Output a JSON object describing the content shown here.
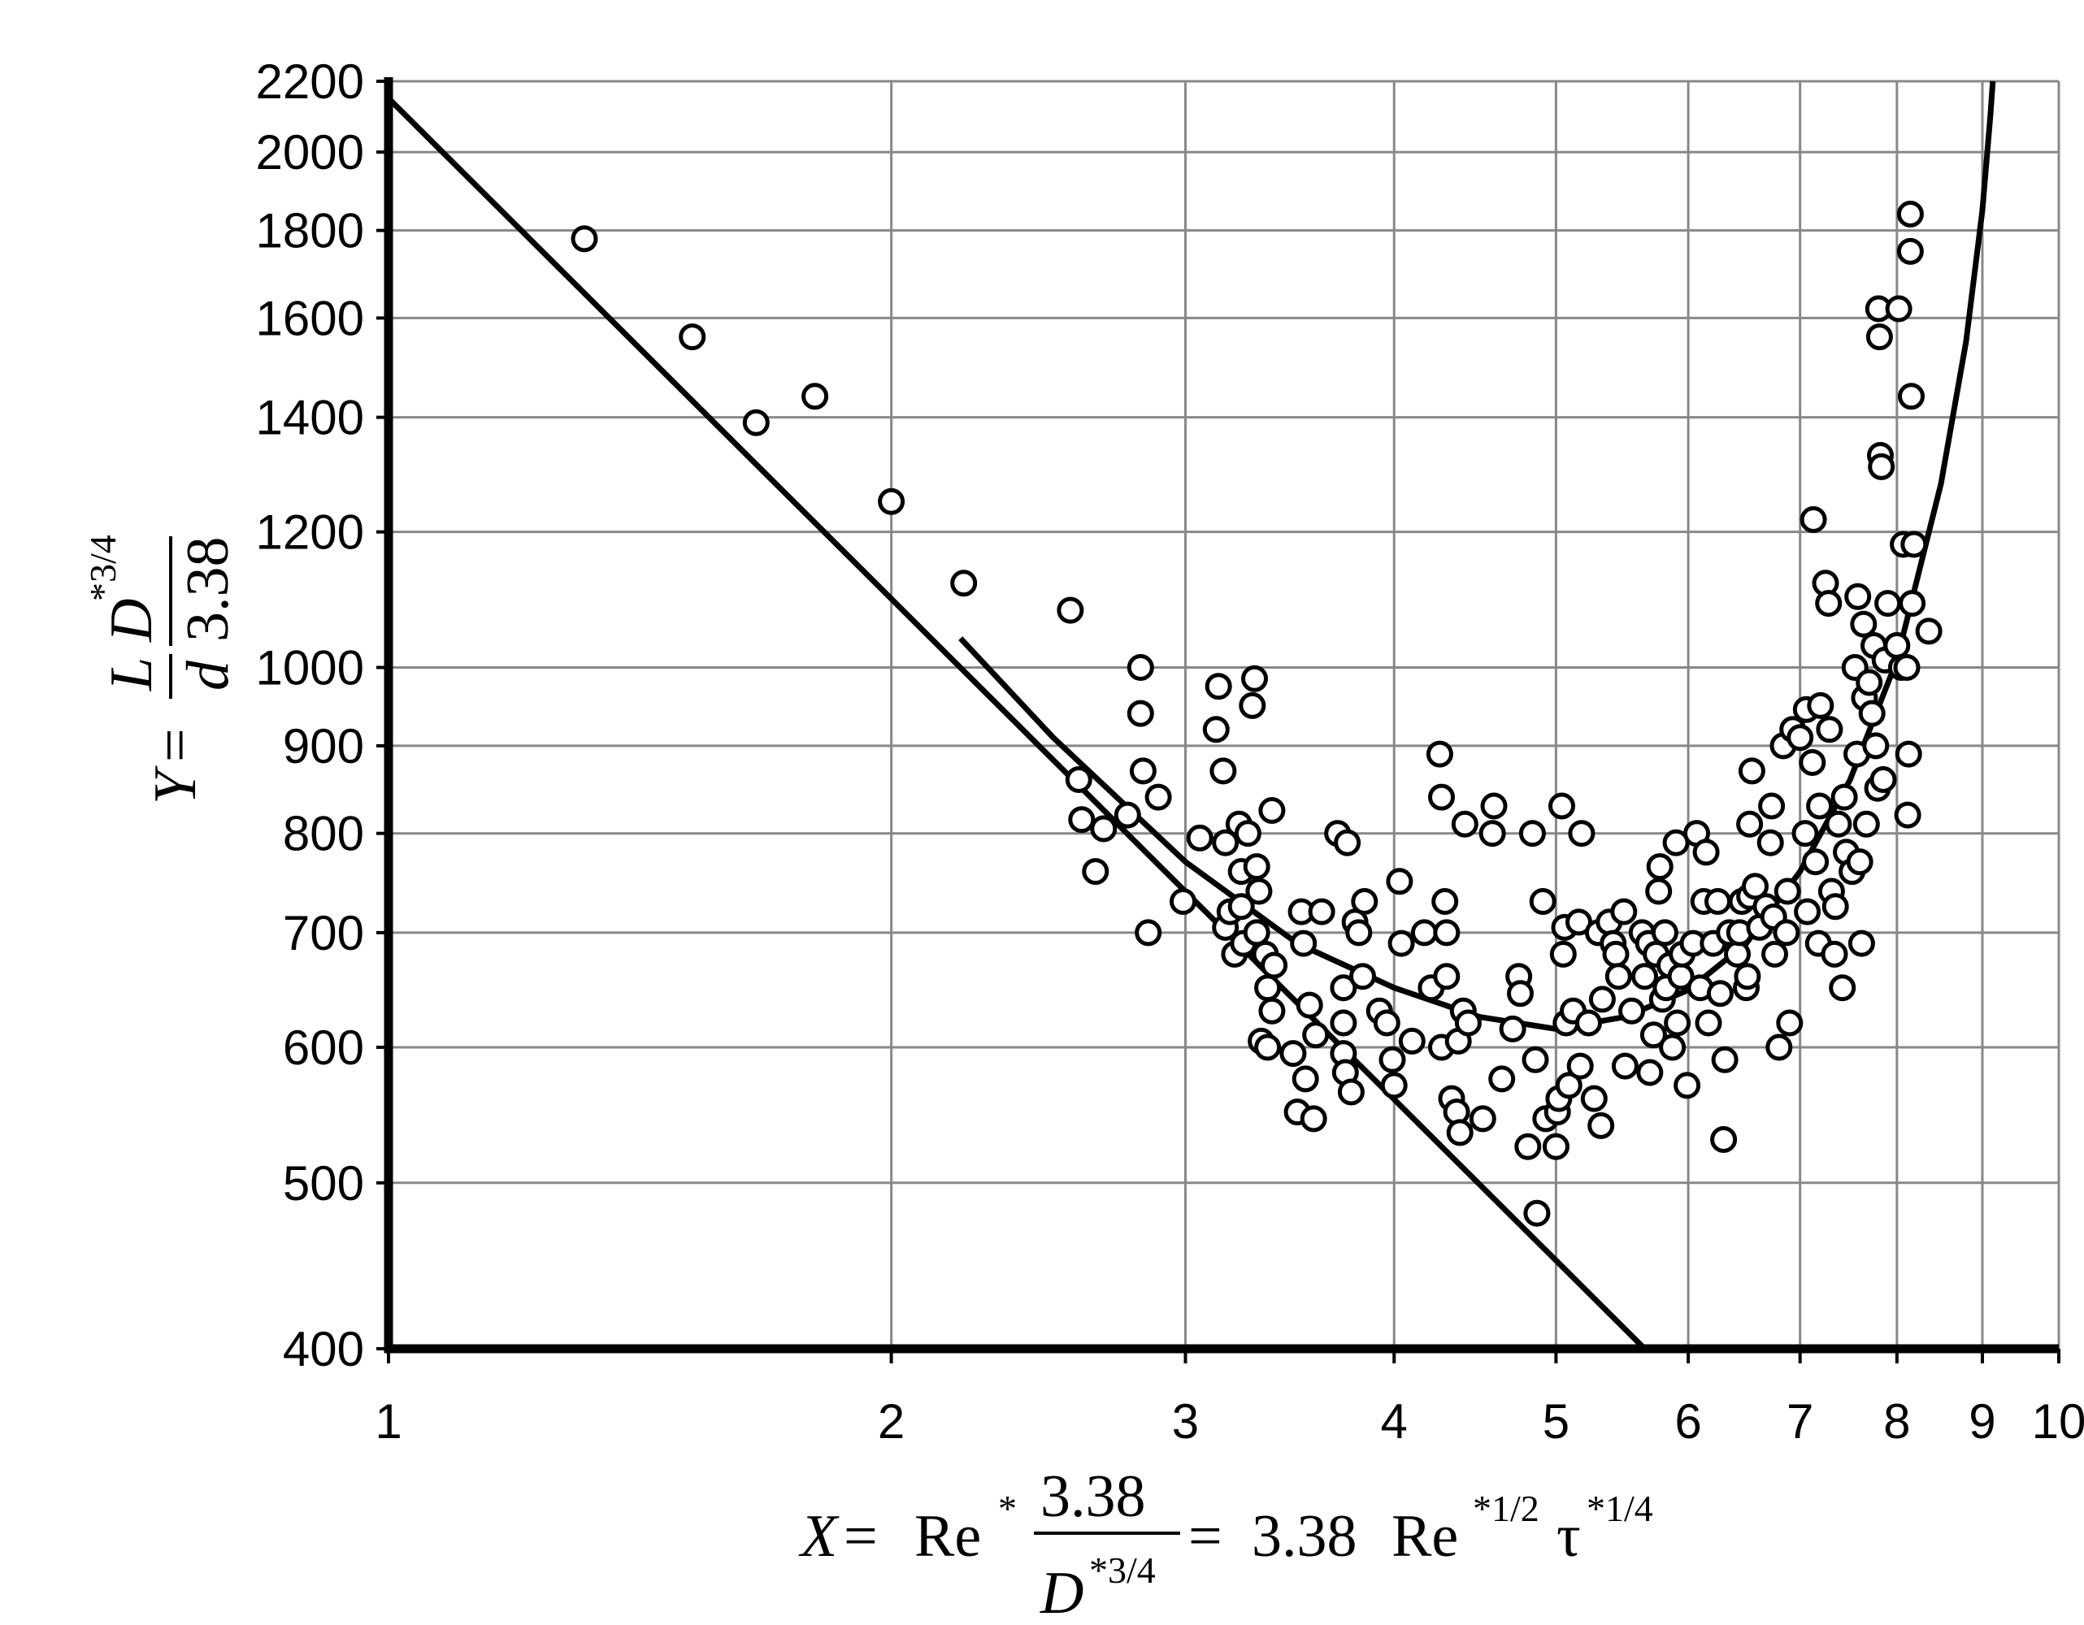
{
  "chart_data": {
    "type": "scatter",
    "title": "",
    "xscale": "log",
    "yscale": "log",
    "xlim": [
      1,
      10
    ],
    "ylim": [
      400,
      2200
    ],
    "grid": true,
    "legend": "none",
    "x_ticks": [
      "1",
      "2",
      "3",
      "4",
      "5",
      "6",
      "7",
      "8",
      "9",
      "10"
    ],
    "y_ticks": [
      "400",
      "500",
      "600",
      "700",
      "800",
      "900",
      "1000",
      "1200",
      "1400",
      "1600",
      "1800",
      "2000",
      "2200"
    ],
    "xlabel": {
      "x": "X",
      "eq": "=",
      "re": "Re",
      "star": "*",
      "num": "3.38",
      "den_d": "D",
      "den_exp": "*3/4",
      "eq2": "=",
      "coef": "3.38",
      "re2": "Re",
      "re2_exp": "*1/2",
      "tau": "τ",
      "tau_exp": "*1/4"
    },
    "ylabel": {
      "y": "Y",
      "eq": "=",
      "num_l": "L",
      "den_d": "d",
      "d_big": "D",
      "d_exp": "*3/4",
      "den_338": "3.38"
    },
    "series": [
      {
        "type": "scatter",
        "points": [
          [
            1.31,
            1780
          ],
          [
            1.52,
            1560
          ],
          [
            1.66,
            1390
          ],
          [
            1.8,
            1440
          ],
          [
            2.0,
            1250
          ],
          [
            2.21,
            1120
          ],
          [
            2.56,
            1080
          ],
          [
            2.59,
            860
          ],
          [
            2.6,
            815
          ],
          [
            2.65,
            760
          ],
          [
            2.68,
            805
          ],
          [
            2.77,
            820
          ],
          [
            2.82,
            1000
          ],
          [
            2.82,
            940
          ],
          [
            2.83,
            870
          ],
          [
            2.85,
            700
          ],
          [
            2.89,
            840
          ],
          [
            2.99,
            730
          ],
          [
            3.06,
            795
          ],
          [
            3.13,
            920
          ],
          [
            3.14,
            975
          ],
          [
            3.16,
            870
          ],
          [
            3.17,
            790
          ],
          [
            3.17,
            705
          ],
          [
            3.19,
            720
          ],
          [
            3.21,
            680
          ],
          [
            3.23,
            810
          ],
          [
            3.24,
            760
          ],
          [
            3.24,
            725
          ],
          [
            3.25,
            690
          ],
          [
            3.27,
            800
          ],
          [
            3.29,
            950
          ],
          [
            3.3,
            985
          ],
          [
            3.31,
            765
          ],
          [
            3.31,
            700
          ],
          [
            3.32,
            740
          ],
          [
            3.33,
            605
          ],
          [
            3.35,
            680
          ],
          [
            3.36,
            650
          ],
          [
            3.36,
            600
          ],
          [
            3.38,
            825
          ],
          [
            3.38,
            630
          ],
          [
            3.39,
            670
          ],
          [
            3.48,
            595
          ],
          [
            3.5,
            550
          ],
          [
            3.52,
            720
          ],
          [
            3.53,
            690
          ],
          [
            3.54,
            575
          ],
          [
            3.56,
            635
          ],
          [
            3.58,
            545
          ],
          [
            3.59,
            610
          ],
          [
            3.62,
            720
          ],
          [
            3.7,
            800
          ],
          [
            3.73,
            650
          ],
          [
            3.73,
            620
          ],
          [
            3.73,
            595
          ],
          [
            3.74,
            580
          ],
          [
            3.75,
            790
          ],
          [
            3.77,
            565
          ],
          [
            3.79,
            710
          ],
          [
            3.81,
            700
          ],
          [
            3.83,
            660
          ],
          [
            3.84,
            730
          ],
          [
            3.92,
            630
          ],
          [
            3.96,
            620
          ],
          [
            3.99,
            590
          ],
          [
            4.0,
            570
          ],
          [
            4.03,
            750
          ],
          [
            4.04,
            690
          ],
          [
            4.1,
            605
          ],
          [
            4.17,
            700
          ],
          [
            4.21,
            650
          ],
          [
            4.26,
            890
          ],
          [
            4.27,
            840
          ],
          [
            4.27,
            600
          ],
          [
            4.29,
            730
          ],
          [
            4.3,
            660
          ],
          [
            4.3,
            700
          ],
          [
            4.33,
            560
          ],
          [
            4.36,
            550
          ],
          [
            4.37,
            605
          ],
          [
            4.38,
            535
          ],
          [
            4.4,
            630
          ],
          [
            4.41,
            810
          ],
          [
            4.43,
            620
          ],
          [
            4.52,
            545
          ],
          [
            4.58,
            800
          ],
          [
            4.59,
            830
          ],
          [
            4.64,
            575
          ],
          [
            4.71,
            615
          ],
          [
            4.75,
            660
          ],
          [
            4.76,
            645
          ],
          [
            4.81,
            525
          ],
          [
            4.84,
            800
          ],
          [
            4.86,
            590
          ],
          [
            4.87,
            480
          ],
          [
            4.91,
            730
          ],
          [
            4.93,
            545
          ],
          [
            5.0,
            525
          ],
          [
            5.01,
            550
          ],
          [
            5.02,
            560
          ],
          [
            5.04,
            830
          ],
          [
            5.05,
            680
          ],
          [
            5.06,
            705
          ],
          [
            5.07,
            620
          ],
          [
            5.09,
            570
          ],
          [
            5.12,
            630
          ],
          [
            5.16,
            710
          ],
          [
            5.17,
            585
          ],
          [
            5.18,
            800
          ],
          [
            5.23,
            620
          ],
          [
            5.27,
            560
          ],
          [
            5.3,
            700
          ],
          [
            5.32,
            540
          ],
          [
            5.33,
            640
          ],
          [
            5.38,
            710
          ],
          [
            5.41,
            690
          ],
          [
            5.43,
            680
          ],
          [
            5.45,
            660
          ],
          [
            5.49,
            720
          ],
          [
            5.5,
            585
          ],
          [
            5.55,
            630
          ],
          [
            5.63,
            700
          ],
          [
            5.65,
            660
          ],
          [
            5.68,
            690
          ],
          [
            5.69,
            580
          ],
          [
            5.72,
            610
          ],
          [
            5.74,
            680
          ],
          [
            5.76,
            740
          ],
          [
            5.77,
            765
          ],
          [
            5.79,
            640
          ],
          [
            5.81,
            700
          ],
          [
            5.82,
            650
          ],
          [
            5.85,
            670
          ],
          [
            5.87,
            600
          ],
          [
            5.9,
            790
          ],
          [
            5.91,
            620
          ],
          [
            5.94,
            660
          ],
          [
            5.95,
            680
          ],
          [
            5.99,
            570
          ],
          [
            6.04,
            690
          ],
          [
            6.07,
            800
          ],
          [
            6.1,
            650
          ],
          [
            6.13,
            730
          ],
          [
            6.15,
            780
          ],
          [
            6.17,
            620
          ],
          [
            6.21,
            690
          ],
          [
            6.25,
            730
          ],
          [
            6.27,
            645
          ],
          [
            6.3,
            530
          ],
          [
            6.31,
            590
          ],
          [
            6.35,
            700
          ],
          [
            6.42,
            680
          ],
          [
            6.44,
            700
          ],
          [
            6.46,
            730
          ],
          [
            6.5,
            650
          ],
          [
            6.51,
            660
          ],
          [
            6.53,
            735
          ],
          [
            6.53,
            810
          ],
          [
            6.55,
            870
          ],
          [
            6.58,
            745
          ],
          [
            6.62,
            705
          ],
          [
            6.68,
            725
          ],
          [
            6.72,
            790
          ],
          [
            6.73,
            830
          ],
          [
            6.75,
            715
          ],
          [
            6.76,
            680
          ],
          [
            6.8,
            600
          ],
          [
            6.84,
            900
          ],
          [
            6.87,
            700
          ],
          [
            6.88,
            740
          ],
          [
            6.9,
            620
          ],
          [
            6.93,
            920
          ],
          [
            7.0,
            910
          ],
          [
            7.05,
            800
          ],
          [
            7.06,
            945
          ],
          [
            7.07,
            720
          ],
          [
            7.12,
            880
          ],
          [
            7.13,
            1220
          ],
          [
            7.15,
            770
          ],
          [
            7.18,
            690
          ],
          [
            7.19,
            830
          ],
          [
            7.2,
            950
          ],
          [
            7.25,
            1120
          ],
          [
            7.28,
            1090
          ],
          [
            7.29,
            920
          ],
          [
            7.31,
            740
          ],
          [
            7.34,
            680
          ],
          [
            7.35,
            725
          ],
          [
            7.38,
            810
          ],
          [
            7.42,
            650
          ],
          [
            7.44,
            840
          ],
          [
            7.46,
            780
          ],
          [
            7.52,
            760
          ],
          [
            7.55,
            1000
          ],
          [
            7.57,
            890
          ],
          [
            7.58,
            1100
          ],
          [
            7.6,
            770
          ],
          [
            7.62,
            690
          ],
          [
            7.64,
            1060
          ],
          [
            7.65,
            960
          ],
          [
            7.67,
            810
          ],
          [
            7.7,
            980
          ],
          [
            7.73,
            940
          ],
          [
            7.75,
            1030
          ],
          [
            7.77,
            900
          ],
          [
            7.79,
            850
          ],
          [
            7.8,
            1620
          ],
          [
            7.81,
            1560
          ],
          [
            7.82,
            1330
          ],
          [
            7.83,
            1310
          ],
          [
            7.85,
            860
          ],
          [
            7.87,
            1010
          ],
          [
            7.9,
            1090
          ],
          [
            8.0,
            1030
          ],
          [
            8.02,
            1620
          ],
          [
            8.05,
            1000
          ],
          [
            8.07,
            1180
          ],
          [
            8.11,
            1000
          ],
          [
            8.12,
            820
          ],
          [
            8.13,
            890
          ],
          [
            8.15,
            1840
          ],
          [
            8.15,
            1750
          ],
          [
            8.16,
            1440
          ],
          [
            8.17,
            1090
          ],
          [
            8.19,
            1180
          ],
          [
            8.36,
            1050
          ]
        ]
      },
      {
        "type": "line",
        "name": "",
        "points": [
          [
            1.0,
            2150
          ],
          [
            5.8,
            390
          ]
        ]
      },
      {
        "type": "line",
        "name": "",
        "points": [
          [
            2.2,
            1040
          ],
          [
            2.5,
            910
          ],
          [
            3.0,
            770
          ],
          [
            3.5,
            690
          ],
          [
            4.0,
            650
          ],
          [
            4.5,
            625
          ],
          [
            5.0,
            615
          ],
          [
            5.5,
            625
          ],
          [
            6.0,
            648
          ],
          [
            6.5,
            690
          ],
          [
            7.0,
            760
          ],
          [
            7.5,
            860
          ],
          [
            8.0,
            1010
          ],
          [
            8.5,
            1280
          ],
          [
            8.8,
            1550
          ],
          [
            9.0,
            1850
          ],
          [
            9.1,
            2100
          ],
          [
            9.13,
            2200
          ]
        ]
      }
    ]
  }
}
